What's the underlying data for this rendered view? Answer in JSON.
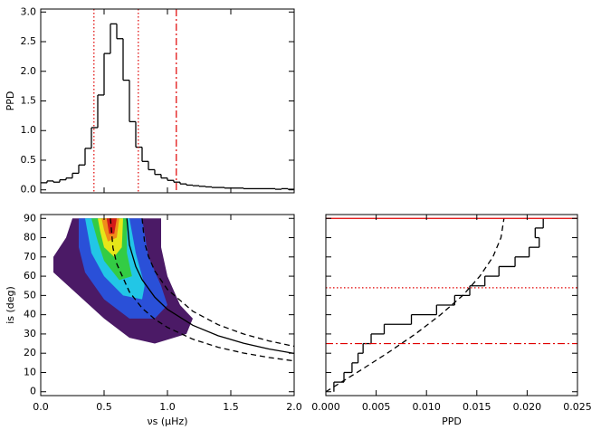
{
  "chart_data": [
    {
      "type": "histogram",
      "ylabel": "PPD",
      "color": "#000000",
      "bins": [
        0,
        0.05,
        0.1,
        0.15,
        0.2,
        0.25,
        0.3,
        0.35,
        0.4,
        0.45,
        0.5,
        0.55,
        0.6,
        0.65,
        0.7,
        0.75,
        0.8,
        0.85,
        0.9,
        0.95,
        1,
        1.05,
        1.1,
        1.15,
        1.2,
        1.25,
        1.3,
        1.35,
        1.4,
        1.45,
        1.5,
        1.55,
        1.6,
        1.65,
        1.7,
        1.75,
        1.8,
        1.85,
        1.9,
        1.95,
        2
      ],
      "values": [
        0.12,
        0.15,
        0.13,
        0.17,
        0.2,
        0.28,
        0.42,
        0.7,
        1.05,
        1.6,
        2.3,
        2.8,
        2.55,
        1.85,
        1.15,
        0.72,
        0.48,
        0.34,
        0.26,
        0.2,
        0.16,
        0.13,
        0.1,
        0.08,
        0.07,
        0.06,
        0.05,
        0.04,
        0.04,
        0.03,
        0.03,
        0.03,
        0.02,
        0.02,
        0.02,
        0.02,
        0.02,
        0.01,
        0.02,
        0.01
      ],
      "xlim": [
        0,
        2
      ],
      "xticks": [
        0,
        0.5,
        1,
        1.5,
        2
      ],
      "ylim": [
        -0.05,
        3.05
      ],
      "yticks": [
        {
          "value": 0,
          "label": "0.0"
        },
        {
          "value": 0.5,
          "label": "0.5"
        },
        {
          "value": 1,
          "label": "1.0"
        },
        {
          "value": 1.5,
          "label": "1.5"
        },
        {
          "value": 2,
          "label": "2.0"
        },
        {
          "value": 2.5,
          "label": "2.5"
        },
        {
          "value": 3,
          "label": "3.0"
        }
      ],
      "vlines": [
        {
          "x": 0.42,
          "color": "#e00000",
          "style": "dotted"
        },
        {
          "x": 0.77,
          "color": "#e00000",
          "style": "dotted"
        },
        {
          "x": 1.07,
          "color": "#e00000",
          "style": "dashdot"
        }
      ]
    },
    {
      "type": "contour",
      "xlabel": "νs (μHz)",
      "ylabel": "is (deg)",
      "xlim": [
        0,
        2
      ],
      "xticks": [
        {
          "value": 0,
          "label": "0.0"
        },
        {
          "value": 0.5,
          "label": "0.5"
        },
        {
          "value": 1,
          "label": "1.0"
        },
        1.5,
        {
          "value": 2,
          "label": "2.0"
        }
      ],
      "ylim": [
        -2,
        92
      ],
      "yticks": [
        0,
        10,
        20,
        30,
        40,
        50,
        60,
        70,
        80,
        90
      ],
      "contours": [
        {
          "color": "#4b1a66",
          "x": [
            0.25,
            0.95,
            0.95,
            1.0,
            1.1,
            1.2,
            1.15,
            0.9,
            0.7,
            0.5,
            0.3,
            0.1,
            0.1,
            0.2
          ],
          "y": [
            90,
            90,
            75,
            60,
            45,
            38,
            30,
            25,
            28,
            38,
            50,
            62,
            70,
            80
          ]
        },
        {
          "color": "#2a50d8",
          "x": [
            0.3,
            0.8,
            0.85,
            0.95,
            1.0,
            0.9,
            0.7,
            0.5,
            0.35,
            0.3
          ],
          "y": [
            90,
            90,
            70,
            55,
            45,
            38,
            38,
            48,
            62,
            75
          ]
        },
        {
          "color": "#22c6e6",
          "x": [
            0.35,
            0.7,
            0.75,
            0.82,
            0.8,
            0.65,
            0.5,
            0.4
          ],
          "y": [
            90,
            90,
            72,
            55,
            48,
            50,
            60,
            72
          ]
        },
        {
          "color": "#33cc44",
          "x": [
            0.4,
            0.68,
            0.68,
            0.72,
            0.62,
            0.5,
            0.45
          ],
          "y": [
            90,
            90,
            72,
            60,
            58,
            68,
            78
          ]
        },
        {
          "color": "#e6e619",
          "x": [
            0.45,
            0.65,
            0.64,
            0.58,
            0.5,
            0.47
          ],
          "y": [
            90,
            90,
            75,
            70,
            75,
            83
          ]
        },
        {
          "color": "#f08c1a",
          "x": [
            0.48,
            0.62,
            0.6,
            0.53,
            0.5
          ],
          "y": [
            90,
            90,
            80,
            78,
            84
          ]
        },
        {
          "color": "#d41a1a",
          "x": [
            0.52,
            0.6,
            0.58,
            0.54
          ],
          "y": [
            90,
            90,
            82,
            82
          ]
        }
      ],
      "lines": [
        {
          "color": "#000000",
          "style": "solid",
          "x": [
            0.68,
            0.7,
            0.75,
            0.8,
            0.9,
            1.0,
            1.2,
            1.4,
            1.6,
            1.8,
            2.0
          ],
          "y": [
            90,
            76.2,
            65.0,
            58.2,
            49.1,
            42.8,
            34.5,
            29.1,
            25.2,
            22.2,
            19.9
          ]
        },
        {
          "color": "#000000",
          "style": "dashed",
          "x": [
            0.8,
            0.82,
            0.85,
            0.9,
            1.0,
            1.2,
            1.4,
            1.6,
            1.8,
            2.0
          ],
          "y": [
            90,
            77.3,
            70.3,
            62.7,
            53.1,
            41.8,
            34.8,
            30.0,
            26.4,
            23.6
          ]
        },
        {
          "color": "#000000",
          "style": "dashed",
          "x": [
            0.55,
            0.57,
            0.6,
            0.7,
            0.8,
            0.9,
            1.0,
            1.2,
            1.4,
            1.6,
            1.8,
            2.0
          ],
          "y": [
            90,
            74.8,
            66.4,
            51.8,
            43.4,
            37.7,
            33.4,
            27.3,
            23.1,
            20.1,
            17.8,
            16.0
          ]
        }
      ]
    },
    {
      "type": "histogram",
      "orientation": "horizontal",
      "xlabel": "PPD",
      "color": "#000000",
      "bins": [
        0,
        5,
        10,
        15,
        20,
        25,
        30,
        35,
        40,
        45,
        50,
        55,
        60,
        65,
        70,
        75,
        80,
        85,
        90
      ],
      "values": [
        0.0008,
        0.0018,
        0.0026,
        0.0032,
        0.0037,
        0.0045,
        0.0058,
        0.0085,
        0.011,
        0.0128,
        0.0143,
        0.0158,
        0.0172,
        0.0188,
        0.0202,
        0.0212,
        0.0208,
        0.0216
      ],
      "xlim": [
        0,
        0.025
      ],
      "xticks": [
        {
          "value": 0,
          "label": "0.000"
        },
        {
          "value": 0.005,
          "label": "0.005"
        },
        {
          "value": 0.01,
          "label": "0.010"
        },
        {
          "value": 0.015,
          "label": "0.015"
        },
        {
          "value": 0.02,
          "label": "0.020"
        },
        {
          "value": 0.025,
          "label": "0.025"
        }
      ],
      "ylim": [
        -2,
        92
      ],
      "yticks": [
        0,
        10,
        20,
        30,
        40,
        50,
        60,
        70,
        80,
        90
      ],
      "lines": [
        {
          "color": "#000000",
          "style": "dashed",
          "x": [
            0,
            0.0031,
            0.0061,
            0.0089,
            0.0114,
            0.0136,
            0.0153,
            0.0166,
            0.0174,
            0.0177
          ],
          "y": [
            0,
            10,
            20,
            30,
            40,
            50,
            60,
            70,
            80,
            90
          ]
        }
      ],
      "hlines": [
        {
          "y": 90,
          "color": "#e00000",
          "style": "solid"
        },
        {
          "y": 54,
          "color": "#e00000",
          "style": "dotted"
        },
        {
          "y": 25,
          "color": "#e00000",
          "style": "dashdot"
        }
      ]
    }
  ]
}
